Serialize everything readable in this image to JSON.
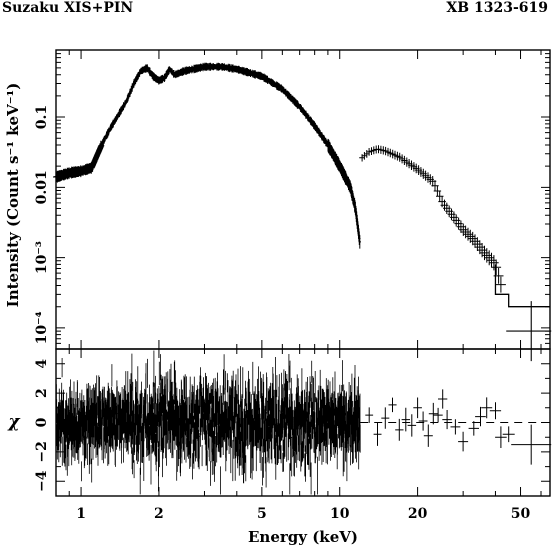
{
  "header": {
    "left_title": "Suzaku XIS+PIN",
    "right_title": "XB 1323-619"
  },
  "chart_data": [
    {
      "type": "scatter",
      "panel": "spectrum",
      "ylabel": "Intensity (Count s⁻¹ keV⁻¹)",
      "x_scale": "log",
      "y_scale": "log",
      "xlim": [
        0.8,
        65
      ],
      "ylim": [
        5e-05,
        0.9
      ],
      "x_ticks": [
        1,
        2,
        5,
        10,
        20,
        50
      ],
      "y_ticks": [
        {
          "value": 0.1,
          "label": "0.1"
        },
        {
          "value": 0.01,
          "label": "0.01"
        },
        {
          "value": 0.001,
          "label": "10⁻³"
        },
        {
          "value": 0.0001,
          "label": "10⁻⁴"
        }
      ],
      "series": [
        {
          "instrument": "XIS",
          "points": [
            [
              0.8,
              0.014
            ],
            [
              0.9,
              0.016
            ],
            [
              1.0,
              0.017
            ],
            [
              1.1,
              0.019
            ],
            [
              1.2,
              0.04
            ],
            [
              1.3,
              0.07
            ],
            [
              1.4,
              0.11
            ],
            [
              1.5,
              0.17
            ],
            [
              1.6,
              0.3
            ],
            [
              1.7,
              0.45
            ],
            [
              1.8,
              0.5
            ],
            [
              1.9,
              0.38
            ],
            [
              2.0,
              0.33
            ],
            [
              2.1,
              0.36
            ],
            [
              2.2,
              0.48
            ],
            [
              2.3,
              0.4
            ],
            [
              2.5,
              0.45
            ],
            [
              3.0,
              0.52
            ],
            [
              3.5,
              0.52
            ],
            [
              4.0,
              0.48
            ],
            [
              5.0,
              0.38
            ],
            [
              6.0,
              0.25
            ],
            [
              7.0,
              0.14
            ],
            [
              8.0,
              0.075
            ],
            [
              9.0,
              0.04
            ],
            [
              10.0,
              0.02
            ],
            [
              11.0,
              0.01
            ],
            [
              11.5,
              0.005
            ],
            [
              12.0,
              0.0015
            ]
          ]
        },
        {
          "instrument": "PIN",
          "points": [
            [
              12.0,
              0.025
            ],
            [
              13.0,
              0.032
            ],
            [
              14.0,
              0.035
            ],
            [
              15.0,
              0.033
            ],
            [
              17.0,
              0.027
            ],
            [
              20.0,
              0.018
            ],
            [
              23.0,
              0.012
            ],
            [
              25.0,
              0.006
            ],
            [
              28.0,
              0.0035
            ],
            [
              30.0,
              0.0025
            ],
            [
              33.0,
              0.0018
            ],
            [
              36.0,
              0.0012
            ],
            [
              40.0,
              0.0008
            ],
            [
              43.0,
              0.0003
            ],
            [
              55.0,
              9e-05
            ]
          ]
        }
      ],
      "model_steps": [
        [
          45.0,
          0.0003
        ],
        [
          48.0,
          0.0002
        ],
        [
          65.0,
          0.0002
        ]
      ]
    },
    {
      "type": "scatter",
      "panel": "residuals",
      "xlabel": "Energy (keV)",
      "ylabel": "χ",
      "x_scale": "log",
      "xlim": [
        0.8,
        65
      ],
      "ylim": [
        -5,
        5
      ],
      "y_ticks": [
        {
          "value": -4,
          "label": "−4"
        },
        {
          "value": -2,
          "label": "−2"
        },
        {
          "value": 0,
          "label": "0"
        },
        {
          "value": 2,
          "label": "2"
        },
        {
          "value": 4,
          "label": "4"
        }
      ],
      "x_ticks": [
        {
          "value": 1,
          "label": "1"
        },
        {
          "value": 2,
          "label": "2"
        },
        {
          "value": 5,
          "label": "5"
        },
        {
          "value": 10,
          "label": "10"
        },
        {
          "value": 20,
          "label": "20"
        },
        {
          "value": 50,
          "label": "50"
        }
      ],
      "xis_scatter_sigma": 1.4,
      "pin_points": [
        [
          13,
          0.5
        ],
        [
          14,
          -0.8
        ],
        [
          15,
          0.3
        ],
        [
          16,
          1.2
        ],
        [
          17,
          -0.5
        ],
        [
          18,
          0.2
        ],
        [
          19,
          -0.2
        ],
        [
          20,
          1.0
        ],
        [
          21,
          0.1
        ],
        [
          22,
          -0.9
        ],
        [
          23,
          0.6
        ],
        [
          24,
          0.5
        ],
        [
          25,
          1.6
        ],
        [
          26,
          0.2
        ],
        [
          28,
          -0.3
        ],
        [
          30,
          -1.3
        ],
        [
          33,
          -0.4
        ],
        [
          35,
          0.4
        ],
        [
          37,
          1.0
        ],
        [
          40,
          0.8
        ],
        [
          42,
          -1.0
        ],
        [
          45,
          -0.8
        ],
        [
          55,
          -1.5
        ]
      ]
    }
  ]
}
